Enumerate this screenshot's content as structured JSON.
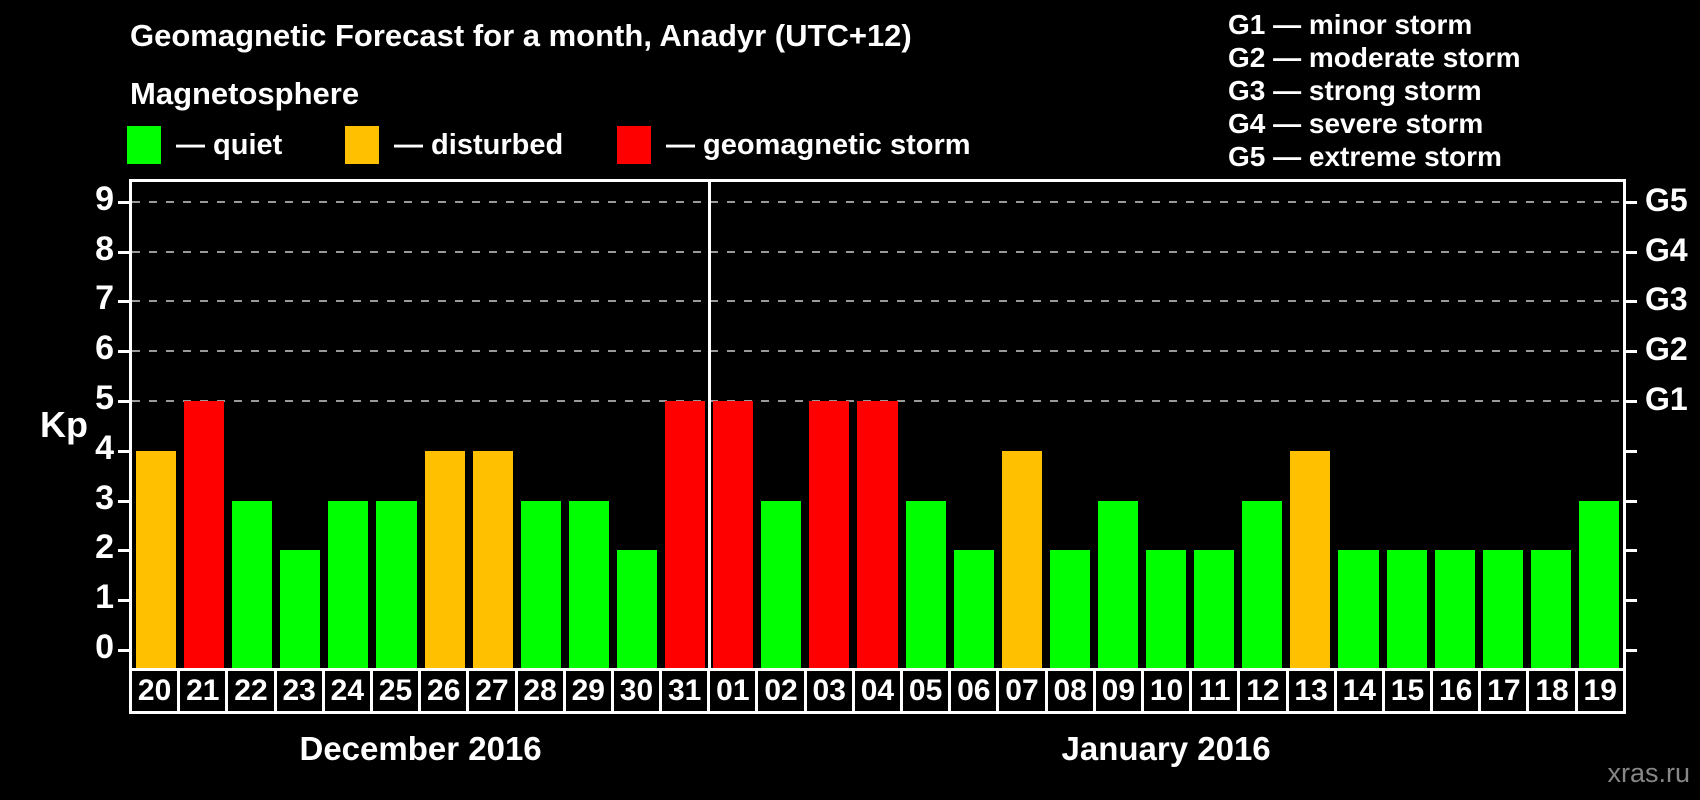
{
  "header": {
    "title": "Geomagnetic Forecast for a month, Anadyr (UTC+12)",
    "subtitle": "Magnetosphere",
    "legend": [
      {
        "label": "— quiet",
        "status": "quiet"
      },
      {
        "label": "— disturbed",
        "status": "disturbed"
      },
      {
        "label": "— geomagnetic storm",
        "status": "storm"
      }
    ],
    "g_legend": [
      "G1 — minor storm",
      "G2 — moderate storm",
      "G3 — strong storm",
      "G4 — severe storm",
      "G5 — extreme storm"
    ]
  },
  "colors": {
    "quiet": "#00ff00",
    "disturbed": "#ffc000",
    "storm": "#ff0000",
    "grid": "#999999",
    "axis": "#ffffff",
    "watermark": "#878787"
  },
  "chart_data": {
    "type": "bar",
    "title": "Geomagnetic Forecast for a month, Anadyr (UTC+12)",
    "ylabel": "Kp",
    "ylim": [
      0,
      9
    ],
    "y_ticks": [
      0,
      1,
      2,
      3,
      4,
      5,
      6,
      7,
      8,
      9
    ],
    "gridline_levels": [
      5,
      6,
      7,
      8,
      9
    ],
    "right_axis": [
      {
        "kp": 5,
        "label": "G1"
      },
      {
        "kp": 6,
        "label": "G2"
      },
      {
        "kp": 7,
        "label": "G3"
      },
      {
        "kp": 8,
        "label": "G4"
      },
      {
        "kp": 9,
        "label": "G5"
      }
    ],
    "color_rule": {
      "quiet": "kp <= 3",
      "disturbed": "kp == 4",
      "storm": "kp >= 5"
    },
    "months": [
      {
        "label": "December 2016",
        "days": [
          "20",
          "21",
          "22",
          "23",
          "24",
          "25",
          "26",
          "27",
          "28",
          "29",
          "30",
          "31"
        ],
        "kp": [
          4,
          5,
          3,
          2,
          3,
          3,
          4,
          4,
          3,
          3,
          2,
          5
        ]
      },
      {
        "label": "January 2016",
        "days": [
          "01",
          "02",
          "03",
          "04",
          "05",
          "06",
          "07",
          "08",
          "09",
          "10",
          "11",
          "12",
          "13",
          "14",
          "15",
          "16",
          "17",
          "18",
          "19"
        ],
        "kp": [
          5,
          3,
          5,
          5,
          3,
          2,
          4,
          2,
          3,
          2,
          2,
          3,
          4,
          2,
          2,
          2,
          2,
          2,
          3
        ]
      }
    ]
  },
  "watermark": "xras.ru"
}
